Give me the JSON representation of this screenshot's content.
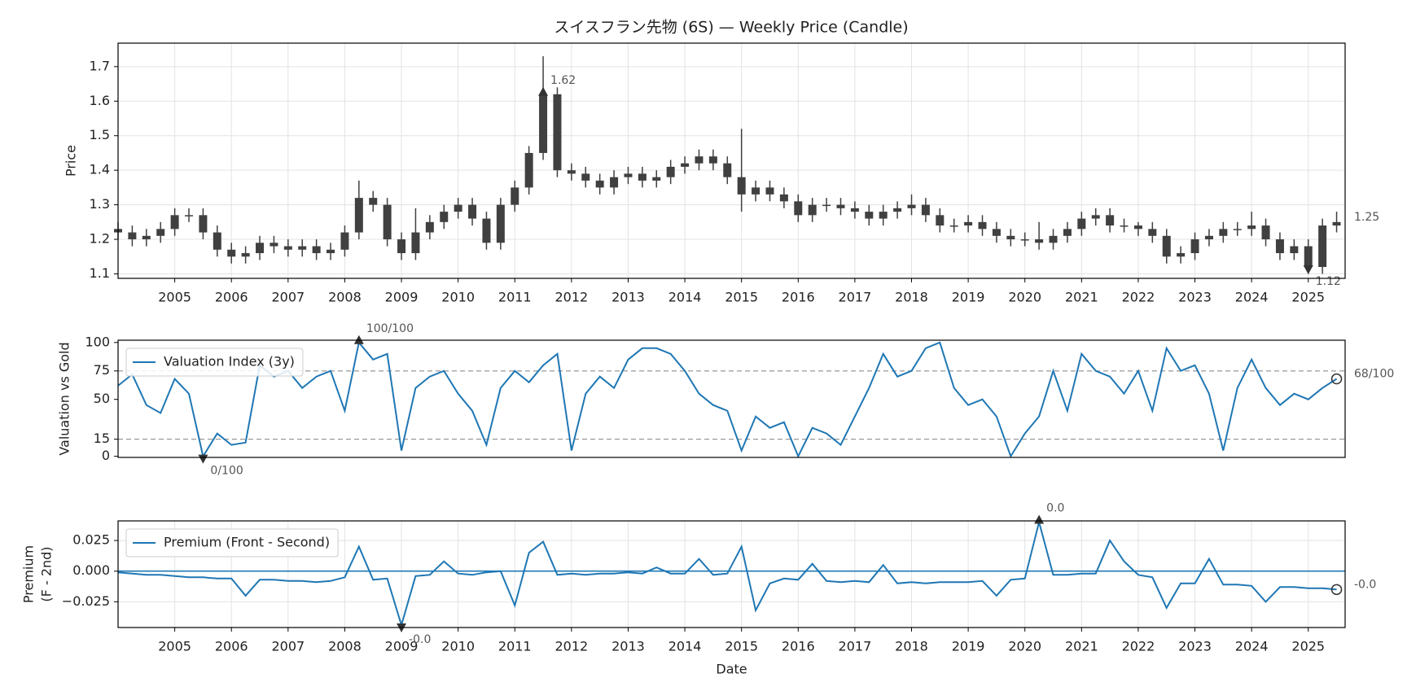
{
  "chart_data": [
    {
      "type": "candlestick",
      "title": "スイスフラン先物 (6S) — Weekly Price (Candle)",
      "ylabel": "Price",
      "color": "#404040",
      "x": [
        2004,
        2004.25,
        2004.5,
        2004.75,
        2005,
        2005.25,
        2005.5,
        2005.75,
        2006,
        2006.25,
        2006.5,
        2006.75,
        2007,
        2007.25,
        2007.5,
        2007.75,
        2008,
        2008.25,
        2008.5,
        2008.75,
        2009,
        2009.25,
        2009.5,
        2009.75,
        2010,
        2010.25,
        2010.5,
        2010.75,
        2011,
        2011.25,
        2011.5,
        2011.75,
        2012,
        2012.25,
        2012.5,
        2012.75,
        2013,
        2013.25,
        2013.5,
        2013.75,
        2014,
        2014.25,
        2014.5,
        2014.75,
        2015,
        2015.25,
        2015.5,
        2015.75,
        2016,
        2016.25,
        2016.5,
        2016.75,
        2017,
        2017.25,
        2017.5,
        2017.75,
        2018,
        2018.25,
        2018.5,
        2018.75,
        2019,
        2019.25,
        2019.5,
        2019.75,
        2020,
        2020.25,
        2020.5,
        2020.75,
        2021,
        2021.25,
        2021.5,
        2021.75,
        2022,
        2022.25,
        2022.5,
        2022.75,
        2023,
        2023.25,
        2023.5,
        2023.75,
        2024,
        2024.25,
        2024.5,
        2024.75,
        2025,
        2025.25,
        2025.5
      ],
      "open": [
        1.23,
        1.22,
        1.2,
        1.21,
        1.23,
        1.27,
        1.27,
        1.22,
        1.17,
        1.15,
        1.16,
        1.19,
        1.18,
        1.17,
        1.18,
        1.16,
        1.17,
        1.22,
        1.32,
        1.3,
        1.2,
        1.16,
        1.22,
        1.25,
        1.28,
        1.3,
        1.26,
        1.19,
        1.3,
        1.35,
        1.45,
        1.62,
        1.4,
        1.39,
        1.37,
        1.35,
        1.38,
        1.39,
        1.37,
        1.38,
        1.41,
        1.42,
        1.44,
        1.42,
        1.38,
        1.33,
        1.35,
        1.33,
        1.31,
        1.27,
        1.3,
        1.3,
        1.29,
        1.28,
        1.26,
        1.28,
        1.29,
        1.3,
        1.27,
        1.24,
        1.24,
        1.25,
        1.23,
        1.21,
        1.2,
        1.2,
        1.19,
        1.21,
        1.23,
        1.26,
        1.27,
        1.24,
        1.24,
        1.23,
        1.21,
        1.15,
        1.16,
        1.2,
        1.21,
        1.23,
        1.23,
        1.24,
        1.2,
        1.16,
        1.18,
        1.12,
        1.24
      ],
      "high": [
        1.25,
        1.24,
        1.23,
        1.25,
        1.29,
        1.29,
        1.29,
        1.24,
        1.19,
        1.18,
        1.21,
        1.21,
        1.2,
        1.2,
        1.2,
        1.19,
        1.24,
        1.37,
        1.34,
        1.32,
        1.22,
        1.29,
        1.27,
        1.3,
        1.32,
        1.32,
        1.28,
        1.32,
        1.37,
        1.47,
        1.73,
        1.64,
        1.42,
        1.41,
        1.39,
        1.4,
        1.41,
        1.41,
        1.4,
        1.43,
        1.44,
        1.46,
        1.46,
        1.44,
        1.52,
        1.37,
        1.37,
        1.35,
        1.33,
        1.32,
        1.32,
        1.32,
        1.31,
        1.3,
        1.3,
        1.31,
        1.33,
        1.32,
        1.29,
        1.26,
        1.27,
        1.27,
        1.25,
        1.23,
        1.22,
        1.25,
        1.23,
        1.25,
        1.28,
        1.29,
        1.29,
        1.26,
        1.25,
        1.25,
        1.23,
        1.18,
        1.22,
        1.23,
        1.25,
        1.25,
        1.28,
        1.26,
        1.22,
        1.2,
        1.2,
        1.26,
        1.28
      ],
      "low": [
        1.2,
        1.18,
        1.18,
        1.19,
        1.21,
        1.25,
        1.2,
        1.15,
        1.13,
        1.13,
        1.14,
        1.16,
        1.15,
        1.15,
        1.14,
        1.14,
        1.15,
        1.2,
        1.28,
        1.18,
        1.14,
        1.14,
        1.2,
        1.23,
        1.26,
        1.24,
        1.17,
        1.17,
        1.28,
        1.33,
        1.43,
        1.38,
        1.37,
        1.35,
        1.33,
        1.33,
        1.36,
        1.35,
        1.35,
        1.36,
        1.39,
        1.4,
        1.4,
        1.36,
        1.28,
        1.31,
        1.31,
        1.29,
        1.25,
        1.25,
        1.28,
        1.27,
        1.26,
        1.24,
        1.24,
        1.26,
        1.27,
        1.25,
        1.22,
        1.22,
        1.22,
        1.21,
        1.19,
        1.18,
        1.18,
        1.17,
        1.17,
        1.19,
        1.21,
        1.24,
        1.22,
        1.22,
        1.21,
        1.19,
        1.13,
        1.13,
        1.14,
        1.18,
        1.19,
        1.21,
        1.21,
        1.18,
        1.14,
        1.14,
        1.1,
        1.1,
        1.22
      ],
      "close": [
        1.22,
        1.2,
        1.21,
        1.23,
        1.27,
        1.27,
        1.22,
        1.17,
        1.15,
        1.16,
        1.19,
        1.18,
        1.17,
        1.18,
        1.16,
        1.17,
        1.22,
        1.32,
        1.3,
        1.2,
        1.16,
        1.22,
        1.25,
        1.28,
        1.3,
        1.26,
        1.19,
        1.3,
        1.35,
        1.45,
        1.62,
        1.4,
        1.39,
        1.37,
        1.35,
        1.38,
        1.39,
        1.37,
        1.38,
        1.41,
        1.42,
        1.44,
        1.42,
        1.38,
        1.33,
        1.35,
        1.33,
        1.31,
        1.27,
        1.3,
        1.3,
        1.29,
        1.28,
        1.26,
        1.28,
        1.29,
        1.3,
        1.27,
        1.24,
        1.24,
        1.25,
        1.23,
        1.21,
        1.2,
        1.2,
        1.19,
        1.21,
        1.23,
        1.26,
        1.27,
        1.24,
        1.24,
        1.23,
        1.21,
        1.15,
        1.16,
        1.2,
        1.21,
        1.23,
        1.23,
        1.24,
        1.2,
        1.16,
        1.18,
        1.12,
        1.24,
        1.25
      ],
      "xlim": [
        2004.0,
        2025.65
      ],
      "ylim": [
        1.087,
        1.768
      ],
      "xticks": [
        2005,
        2006,
        2007,
        2008,
        2009,
        2010,
        2011,
        2012,
        2013,
        2014,
        2015,
        2016,
        2017,
        2018,
        2019,
        2020,
        2021,
        2022,
        2023,
        2024,
        2025
      ],
      "yticks": [
        1.1,
        1.2,
        1.3,
        1.4,
        1.5,
        1.6,
        1.7
      ],
      "grid": true,
      "annotations": [
        {
          "kind": "max",
          "label": "1.62",
          "x": 2011.5,
          "y": 1.62,
          "marker": "^"
        },
        {
          "kind": "min",
          "label": "1.12",
          "x": 2025.0,
          "y": 1.12,
          "marker": "v"
        },
        {
          "kind": "last",
          "label": "1.25",
          "x": 2025.5,
          "y": 1.25
        }
      ]
    },
    {
      "type": "line",
      "ylabel": "Valuation vs Gold",
      "legend": "upper left",
      "x": [
        2004,
        2004.25,
        2004.5,
        2004.75,
        2005,
        2005.25,
        2005.5,
        2005.75,
        2006,
        2006.25,
        2006.5,
        2006.75,
        2007,
        2007.25,
        2007.5,
        2007.75,
        2008,
        2008.25,
        2008.5,
        2008.75,
        2009,
        2009.25,
        2009.5,
        2009.75,
        2010,
        2010.25,
        2010.5,
        2010.75,
        2011,
        2011.25,
        2011.5,
        2011.75,
        2012,
        2012.25,
        2012.5,
        2012.75,
        2013,
        2013.25,
        2013.5,
        2013.75,
        2014,
        2014.25,
        2014.5,
        2014.75,
        2015,
        2015.25,
        2015.5,
        2015.75,
        2016,
        2016.25,
        2016.5,
        2016.75,
        2017,
        2017.25,
        2017.5,
        2017.75,
        2018,
        2018.25,
        2018.5,
        2018.75,
        2019,
        2019.25,
        2019.5,
        2019.75,
        2020,
        2020.25,
        2020.5,
        2020.75,
        2021,
        2021.25,
        2021.5,
        2021.75,
        2022,
        2022.25,
        2022.5,
        2022.75,
        2023,
        2023.25,
        2023.5,
        2023.75,
        2024,
        2024.25,
        2024.5,
        2024.75,
        2025,
        2025.25,
        2025.5
      ],
      "series": [
        {
          "name": "Valuation Index (3y)",
          "color": "#1f77b4",
          "values": [
            62,
            72,
            45,
            38,
            68,
            55,
            0,
            20,
            10,
            12,
            80,
            70,
            75,
            60,
            70,
            75,
            40,
            100,
            85,
            90,
            5,
            60,
            70,
            75,
            55,
            40,
            10,
            60,
            75,
            65,
            80,
            90,
            5,
            55,
            70,
            60,
            85,
            95,
            95,
            90,
            75,
            55,
            45,
            40,
            5,
            35,
            25,
            30,
            0,
            25,
            20,
            10,
            35,
            60,
            90,
            70,
            75,
            95,
            100,
            60,
            45,
            50,
            35,
            0,
            20,
            35,
            75,
            40,
            90,
            75,
            70,
            55,
            75,
            40,
            95,
            75,
            80,
            55,
            5,
            60,
            85,
            60,
            45,
            55,
            50,
            60,
            68
          ]
        }
      ],
      "xlim": [
        2004.0,
        2025.65
      ],
      "ylim": [
        -1,
        102
      ],
      "yticks": [
        0,
        15,
        50,
        75,
        100
      ],
      "grid": false,
      "hlines": [
        {
          "value": 75,
          "color": "#999999",
          "dashed": true
        },
        {
          "value": 15,
          "color": "#999999",
          "dashed": true
        }
      ],
      "annotations": [
        {
          "kind": "max",
          "label": "100/100",
          "x": 2008.25,
          "y": 100,
          "marker": "^"
        },
        {
          "kind": "min",
          "label": "0/100",
          "x": 2005.5,
          "y": 0,
          "marker": "v"
        },
        {
          "kind": "last",
          "label": "68/100",
          "x": 2025.5,
          "y": 68,
          "marker": "o"
        }
      ]
    },
    {
      "type": "line",
      "ylabel": [
        "Premium",
        "(F - 2nd)"
      ],
      "xlabel": "Date",
      "legend": "upper left",
      "x": [
        2004,
        2004.25,
        2004.5,
        2004.75,
        2005,
        2005.25,
        2005.5,
        2005.75,
        2006,
        2006.25,
        2006.5,
        2006.75,
        2007,
        2007.25,
        2007.5,
        2007.75,
        2008,
        2008.25,
        2008.5,
        2008.75,
        2009,
        2009.25,
        2009.5,
        2009.75,
        2010,
        2010.25,
        2010.5,
        2010.75,
        2011,
        2011.25,
        2011.5,
        2011.75,
        2012,
        2012.25,
        2012.5,
        2012.75,
        2013,
        2013.25,
        2013.5,
        2013.75,
        2014,
        2014.25,
        2014.5,
        2014.75,
        2015,
        2015.25,
        2015.5,
        2015.75,
        2016,
        2016.25,
        2016.5,
        2016.75,
        2017,
        2017.25,
        2017.5,
        2017.75,
        2018,
        2018.25,
        2018.5,
        2018.75,
        2019,
        2019.25,
        2019.5,
        2019.75,
        2020,
        2020.25,
        2020.5,
        2020.75,
        2021,
        2021.25,
        2021.5,
        2021.75,
        2022,
        2022.25,
        2022.5,
        2022.75,
        2023,
        2023.25,
        2023.5,
        2023.75,
        2024,
        2024.25,
        2024.5,
        2024.75,
        2025,
        2025.25,
        2025.5
      ],
      "series": [
        {
          "name": "Premium (Front - Second)",
          "color": "#1f77b4",
          "values": [
            -0.001,
            -0.002,
            -0.003,
            -0.003,
            -0.004,
            -0.005,
            -0.005,
            -0.006,
            -0.006,
            -0.02,
            -0.007,
            -0.007,
            -0.008,
            -0.008,
            -0.009,
            -0.008,
            -0.005,
            0.02,
            -0.007,
            -0.006,
            -0.044,
            -0.004,
            -0.003,
            0.008,
            -0.002,
            -0.003,
            -0.001,
            0.0,
            -0.028,
            0.015,
            0.024,
            -0.003,
            -0.002,
            -0.003,
            -0.002,
            -0.002,
            -0.001,
            -0.002,
            0.003,
            -0.002,
            -0.002,
            0.01,
            -0.003,
            -0.002,
            0.02,
            -0.032,
            -0.01,
            -0.006,
            -0.007,
            0.006,
            -0.008,
            -0.009,
            -0.008,
            -0.009,
            0.005,
            -0.01,
            -0.009,
            -0.01,
            -0.009,
            -0.009,
            -0.009,
            -0.008,
            -0.02,
            -0.007,
            -0.006,
            0.04,
            -0.003,
            -0.003,
            -0.002,
            -0.002,
            0.025,
            0.008,
            -0.003,
            -0.005,
            -0.03,
            -0.01,
            -0.01,
            0.01,
            -0.011,
            -0.011,
            -0.012,
            -0.025,
            -0.013,
            -0.013,
            -0.014,
            -0.014,
            -0.015
          ]
        }
      ],
      "xlim": [
        2004.0,
        2025.65
      ],
      "ylim": [
        -0.046,
        0.041
      ],
      "xticks": [
        2005,
        2006,
        2007,
        2008,
        2009,
        2010,
        2011,
        2012,
        2013,
        2014,
        2015,
        2016,
        2017,
        2018,
        2019,
        2020,
        2021,
        2022,
        2023,
        2024,
        2025
      ],
      "yticks": [
        {
          "value": -0.025,
          "label": "−0.025"
        },
        {
          "value": 0,
          "label": "0.000"
        },
        0.025
      ],
      "grid": true,
      "hlines": [
        {
          "value": 0,
          "color": "#1f77b4",
          "dashed": false
        }
      ],
      "annotations": [
        {
          "kind": "max",
          "label": "0.0",
          "x": 2020.25,
          "y": 0.04,
          "marker": "^"
        },
        {
          "kind": "min",
          "label": "-0.0",
          "x": 2009.0,
          "y": -0.044,
          "marker": "v"
        },
        {
          "kind": "last",
          "label": "-0.0",
          "x": 2025.5,
          "y": -0.015,
          "marker": "o"
        }
      ]
    }
  ]
}
